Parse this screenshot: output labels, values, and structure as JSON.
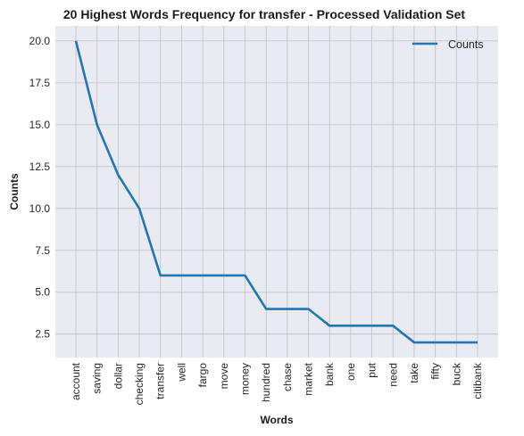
{
  "chart_data": {
    "type": "line",
    "title": "20 Highest Words Frequency for transfer - Processed Validation Set",
    "xlabel": "Words",
    "ylabel": "Counts",
    "categories": [
      "account",
      "saving",
      "dollar",
      "checking",
      "transfer",
      "well",
      "fargo",
      "move",
      "money",
      "hundred",
      "chase",
      "market",
      "bank",
      "one",
      "put",
      "need",
      "take",
      "fifty",
      "buck",
      "citibank"
    ],
    "series": [
      {
        "name": "Counts",
        "values": [
          20,
          15,
          12,
          10,
          6,
          6,
          6,
          6,
          6,
          4,
          4,
          4,
          3,
          3,
          3,
          3,
          2,
          2,
          2,
          2
        ]
      }
    ],
    "ylim": [
      1.1,
      20.9
    ],
    "yticks": [
      "2.5",
      "5.0",
      "7.5",
      "10.0",
      "12.5",
      "15.0",
      "17.5",
      "20.0"
    ],
    "grid": true,
    "legend_position": "top-right",
    "colors": {
      "line": "#1f77b4",
      "plot_bg": "#eaeaf2",
      "grid": "#c0c0c0"
    }
  }
}
